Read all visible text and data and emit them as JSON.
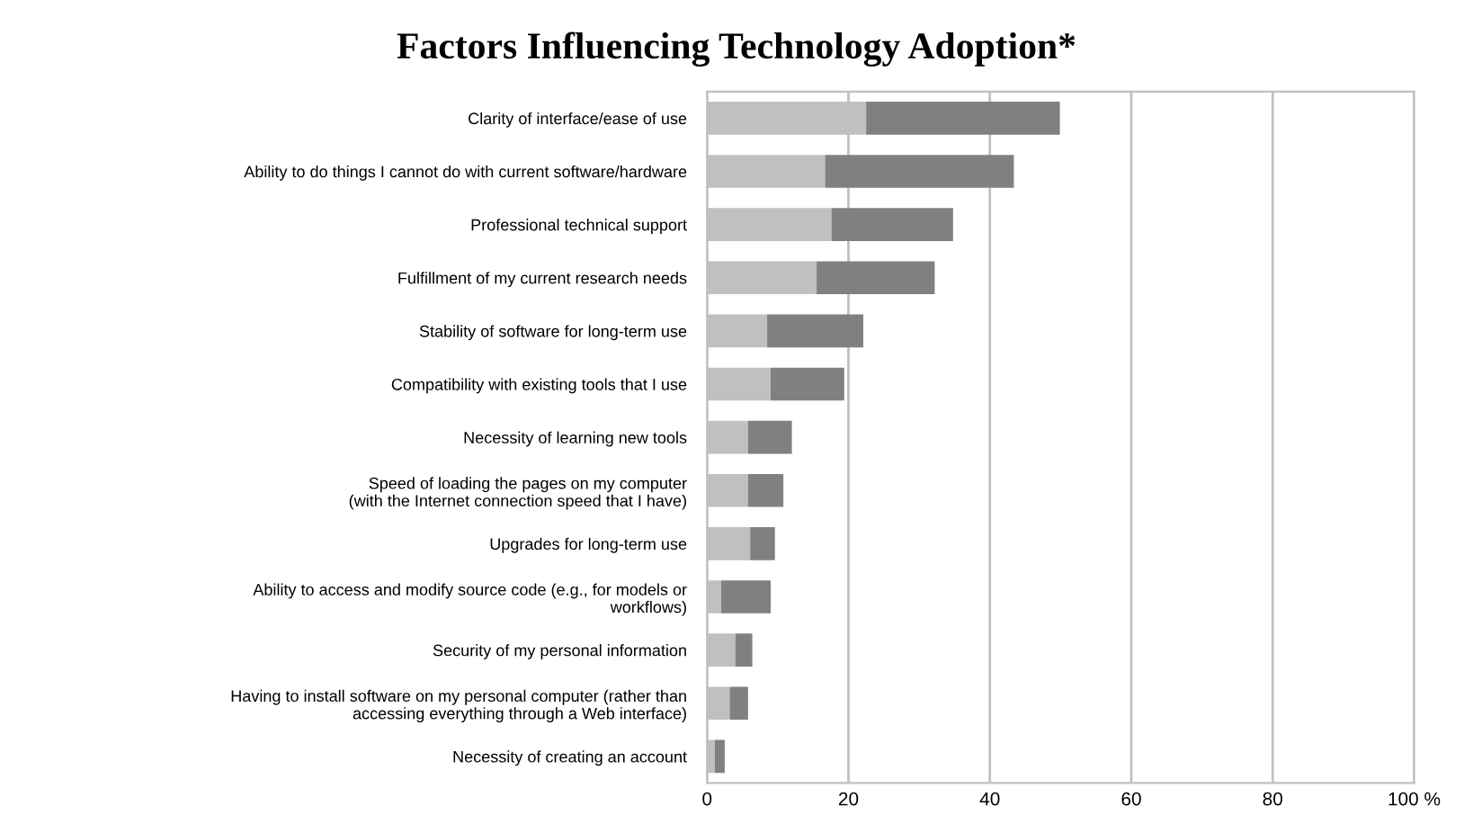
{
  "chart_data": {
    "type": "bar",
    "orientation": "horizontal",
    "stacked": true,
    "title": "Factors Influencing Technology Adoption*",
    "categories": [
      "Clarity of interface/ease of use",
      "Ability to do things I cannot do with current software/hardware",
      "Professional technical support",
      "Fulfillment of my current research needs",
      "Stability of software for long-term use",
      "Compatibility with existing tools that I use",
      "Necessity of learning new tools",
      "Speed of loading the pages on my computer\n(with the Internet connection speed that I have)",
      "Upgrades for long-term use",
      "Ability to access and modify source code (e.g., for models or\nworkflows)",
      "Security of my personal information",
      "Having to install software on my personal computer (rather than\naccessing everything through a Web interface)",
      "Necessity of creating an account"
    ],
    "series": [
      {
        "color": "#c0c0c0",
        "values": [
          22.5,
          16.7,
          17.6,
          15.5,
          8.5,
          9.0,
          5.8,
          5.8,
          6.1,
          2.0,
          4.0,
          3.2,
          1.1
        ]
      },
      {
        "color": "#808080",
        "values": [
          27.4,
          26.7,
          17.2,
          16.7,
          13.6,
          10.4,
          6.2,
          5.0,
          3.5,
          7.0,
          2.4,
          2.6,
          1.4
        ]
      }
    ],
    "xlim": [
      0,
      100
    ],
    "xticks": [
      0,
      20,
      40,
      60,
      80,
      {
        "value": 100,
        "label": "100 %"
      }
    ],
    "grid": "x"
  }
}
